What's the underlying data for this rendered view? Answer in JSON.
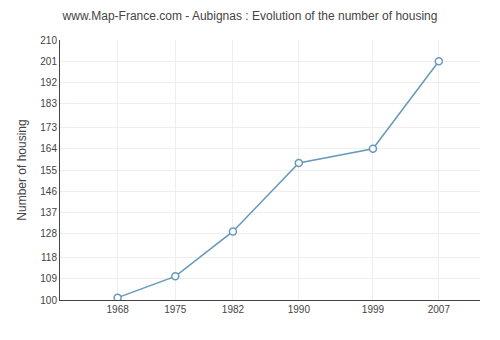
{
  "chart_data": {
    "type": "line",
    "title": "www.Map-France.com - Aubignas : Evolution of the number of housing",
    "ylabel": "Number of housing",
    "x": [
      1968,
      1975,
      1982,
      1990,
      1999,
      2007
    ],
    "values": [
      101,
      110,
      129,
      158,
      164,
      201
    ],
    "xlim": [
      1961,
      2012
    ],
    "xticks": [
      1968,
      1975,
      1982,
      1990,
      1999,
      2007
    ],
    "ylim": [
      100,
      210
    ],
    "yticks": [
      100,
      109,
      118,
      128,
      137,
      146,
      155,
      164,
      173,
      183,
      192,
      201,
      210
    ],
    "grid": true,
    "color": "#6699bb",
    "marker": "circle"
  }
}
